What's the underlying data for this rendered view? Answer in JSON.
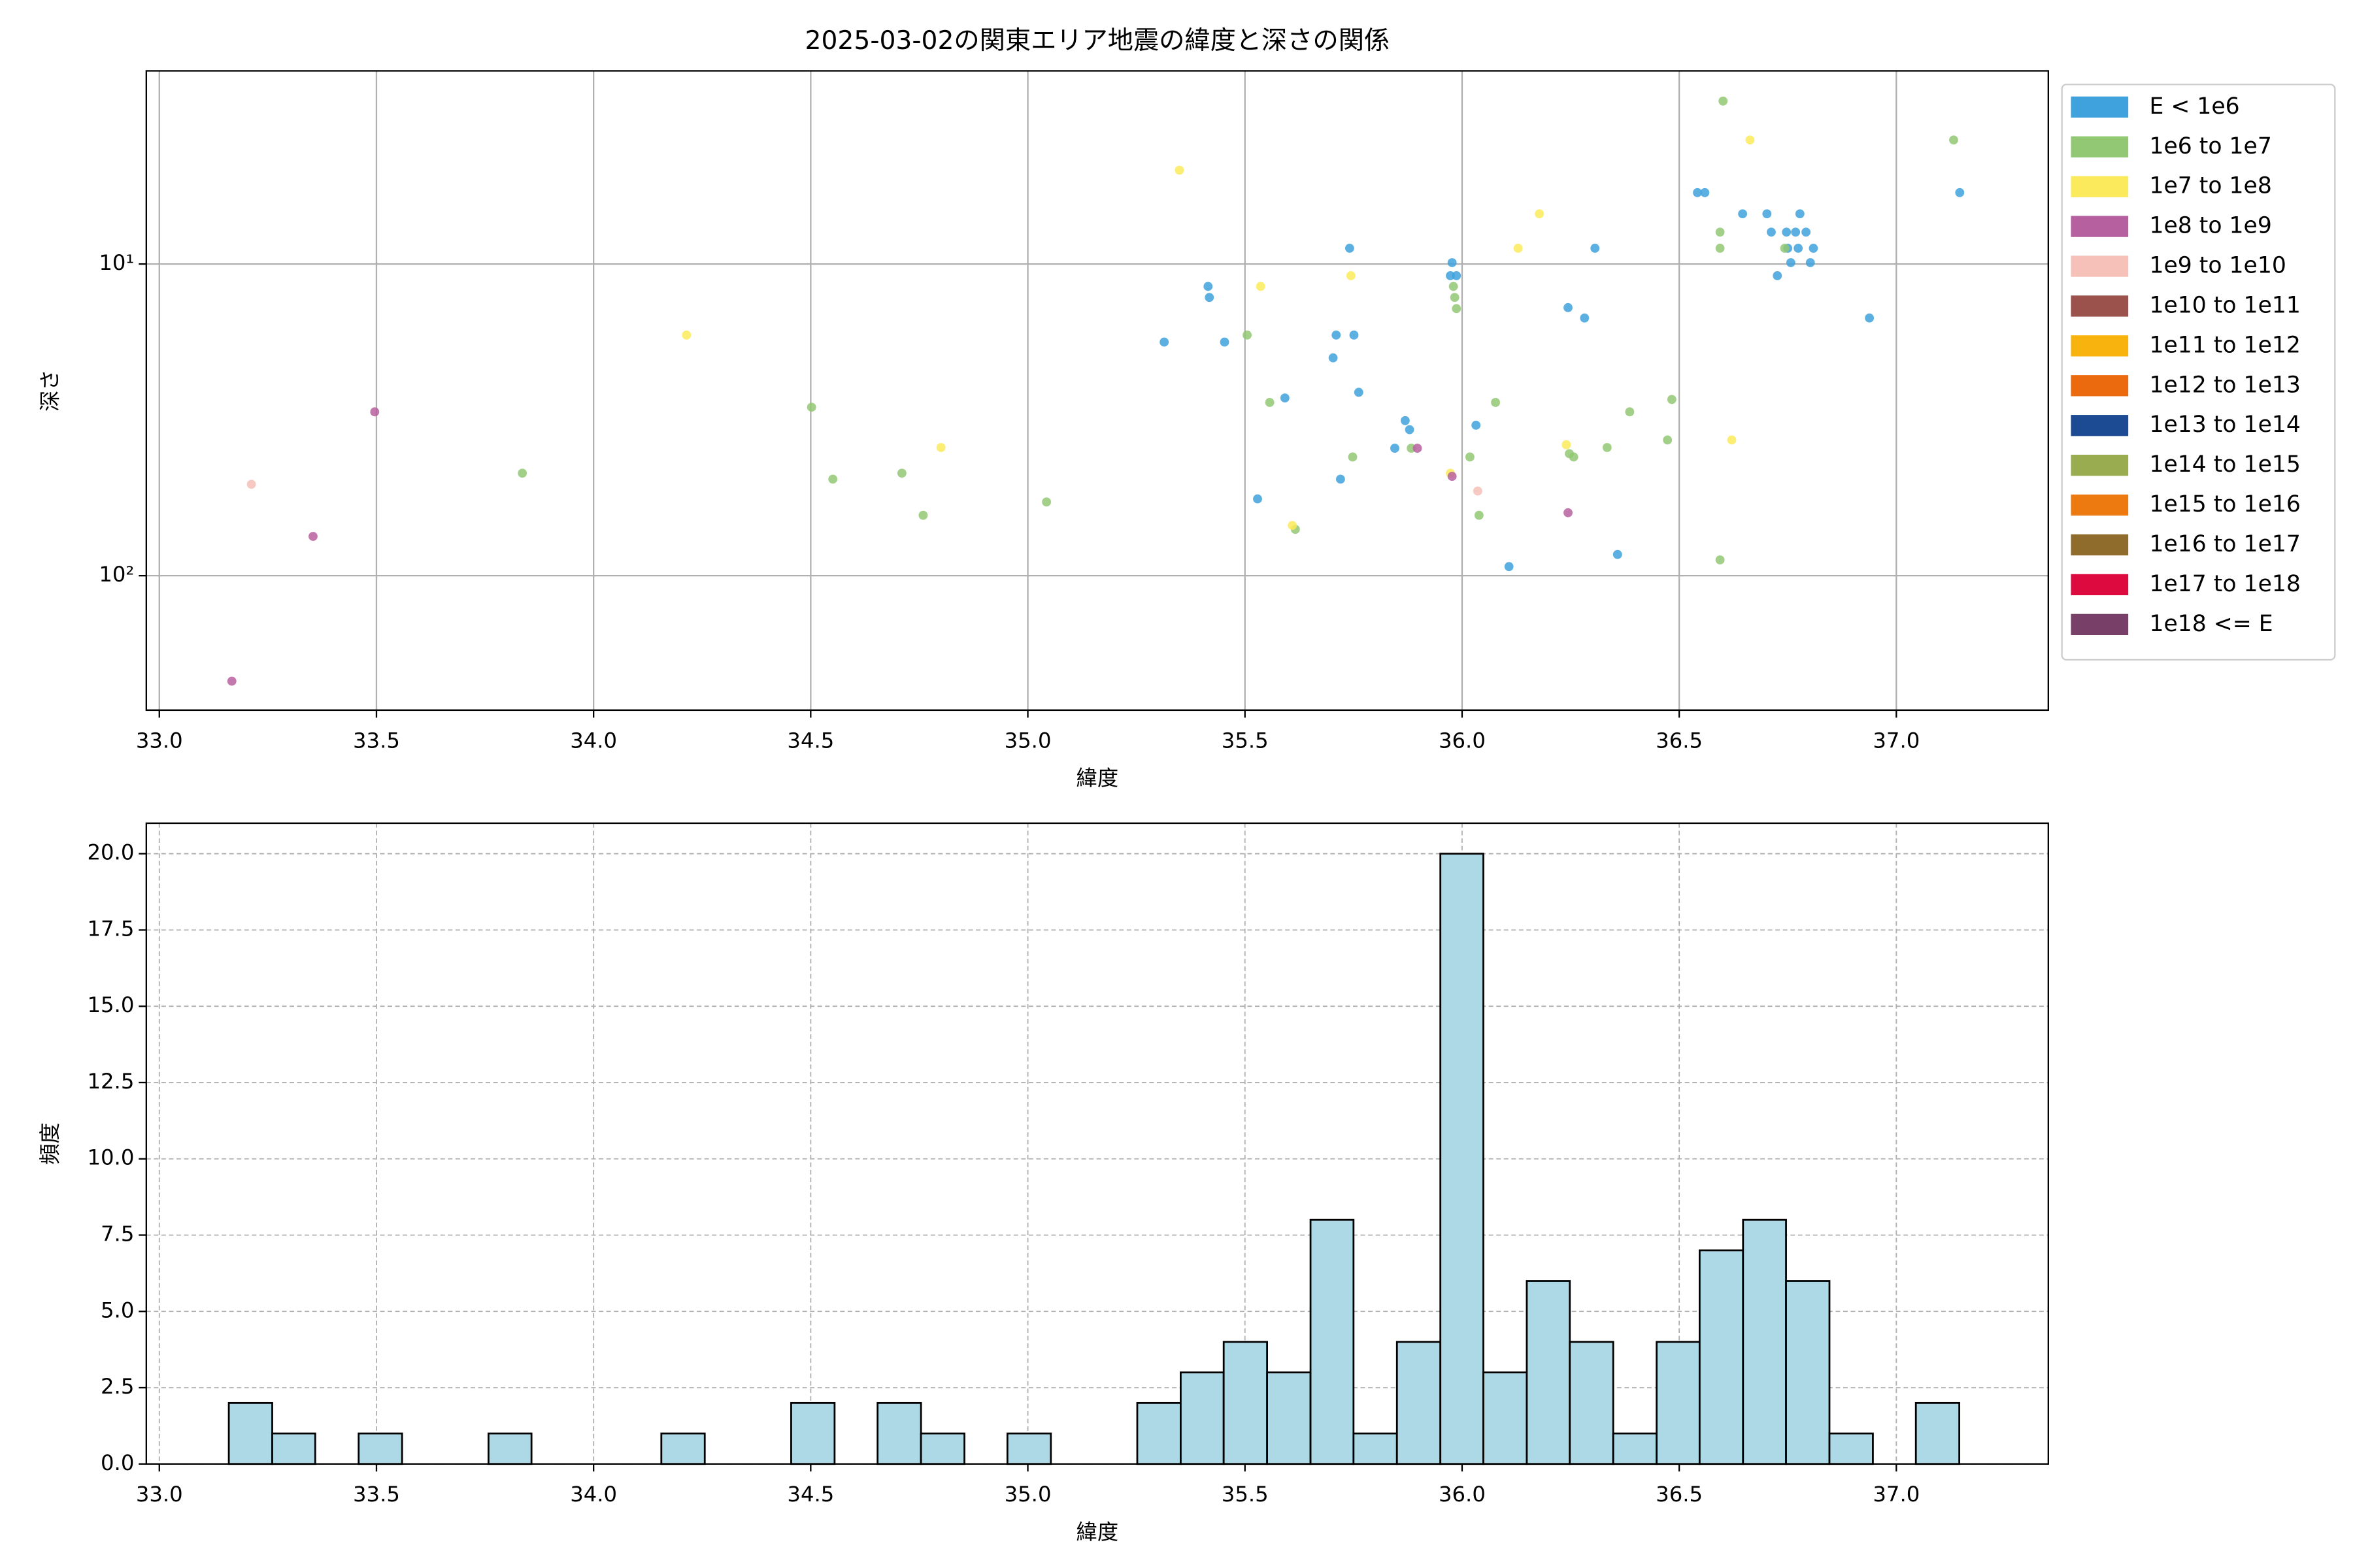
{
  "chart_data": [
    {
      "type": "scatter",
      "title": "2025-03-02の関東エリア地震の緯度と深さの関係",
      "xlabel": "緯度",
      "ylabel": "深さ",
      "xlim": [
        32.97,
        37.35
      ],
      "ylim": [
        270,
        2.4
      ],
      "yscale": "log",
      "grid": "solid",
      "legend": "outside right",
      "xticks": [
        {
          "value": 33,
          "label": "33.0"
        },
        {
          "value": 33.5,
          "label": "33.5"
        },
        {
          "value": 34,
          "label": "34.0"
        },
        {
          "value": 34.5,
          "label": "34.5"
        },
        {
          "value": 35,
          "label": "35.0"
        },
        {
          "value": 35.5,
          "label": "35.5"
        },
        {
          "value": 36,
          "label": "36.0"
        },
        {
          "value": 36.5,
          "label": "36.5"
        },
        {
          "value": 37,
          "label": "37.0"
        }
      ],
      "yticks": [
        {
          "value": 10,
          "label": "10¹"
        },
        {
          "value": 100,
          "label": "10²"
        }
      ],
      "series": [
        {
          "name": "E < 1e6",
          "color": "#40a2dc",
          "x": [
            35.314,
            35.415,
            35.418,
            35.453,
            35.592,
            35.529,
            35.741,
            35.71,
            35.751,
            35.703,
            35.762,
            35.72,
            35.977,
            35.973,
            35.987,
            35.869,
            35.879,
            35.845,
            36.032,
            36.108,
            36.244,
            36.282,
            36.306,
            36.358,
            36.542,
            36.559,
            36.646,
            36.702,
            36.778,
            36.712,
            36.747,
            36.768,
            36.792,
            36.75,
            36.774,
            36.809,
            36.757,
            36.802,
            36.726,
            36.938,
            37.146
          ],
          "values": [
            17.8,
            11.8,
            12.8,
            17.8,
            26.9,
            56.7,
            8.9,
            16.9,
            16.9,
            20,
            25.8,
            49,
            9.9,
            10.9,
            10.9,
            31.8,
            34,
            39,
            32.9,
            93.5,
            13.8,
            14.9,
            8.9,
            85.5,
            5.9,
            5.9,
            6.9,
            6.9,
            6.9,
            7.9,
            7.9,
            7.9,
            7.9,
            8.9,
            8.9,
            8.9,
            9.9,
            9.9,
            10.9,
            14.9,
            5.9
          ]
        },
        {
          "name": "1e6 to 1e7",
          "color": "#92c873",
          "x": [
            36.601,
            37.132,
            36.594,
            36.594,
            36.743,
            35.98,
            35.983,
            35.987,
            35.505,
            35.557,
            36.077,
            36.386,
            36.483,
            34.502,
            33.836,
            34.551,
            34.71,
            34.759,
            35.043,
            35.616,
            35.748,
            35.883,
            36.018,
            36.039,
            36.247,
            36.257,
            36.334,
            36.473,
            36.594
          ],
          "values": [
            3.0,
            4.0,
            7.9,
            8.9,
            8.9,
            11.8,
            12.8,
            13.9,
            16.9,
            27.8,
            27.8,
            29.8,
            27.2,
            28.8,
            46.9,
            49,
            46.9,
            64,
            58,
            71,
            41.6,
            39,
            41.6,
            64,
            40.6,
            41.6,
            38.8,
            36.7,
            89
          ]
        },
        {
          "name": "1e7 to 1e8",
          "color": "#fbea5b",
          "x": [
            35.349,
            36.663,
            36.178,
            36.129,
            35.744,
            35.536,
            34.214,
            34.8,
            36.621,
            36.24,
            35.973,
            35.609
          ],
          "values": [
            5.0,
            4.0,
            6.9,
            8.9,
            10.9,
            11.8,
            16.9,
            38.8,
            36.7,
            38,
            46.9,
            69
          ]
        },
        {
          "name": "1e8 to 1e9",
          "color": "#b7609f",
          "x": [
            33.496,
            33.354,
            33.167,
            35.897,
            35.977,
            36.244
          ],
          "values": [
            29.8,
            74.8,
            218,
            39,
            48,
            62.8
          ]
        },
        {
          "name": "1e9 to 1e10",
          "color": "#f5c1b8",
          "x": [
            33.212,
            36.036
          ],
          "values": [
            50.9,
            53.5
          ]
        },
        {
          "name": "1e10 to 1e11",
          "color": "#9b524d",
          "x": [],
          "values": []
        },
        {
          "name": "1e11 to 1e12",
          "color": "#f8b30f",
          "x": [],
          "values": []
        },
        {
          "name": "1e12 to 1e13",
          "color": "#ec6a0e",
          "x": [],
          "values": []
        },
        {
          "name": "1e13 to 1e14",
          "color": "#1c4b93",
          "x": [],
          "values": []
        },
        {
          "name": "1e14 to 1e15",
          "color": "#9aac50",
          "x": [],
          "values": []
        },
        {
          "name": "1e15 to 1e16",
          "color": "#ed7a11",
          "x": [],
          "values": []
        },
        {
          "name": "1e16 to 1e17",
          "color": "#8f6b2c",
          "x": [],
          "values": []
        },
        {
          "name": "1e17 to 1e18",
          "color": "#dc0a3f",
          "x": [],
          "values": []
        },
        {
          "name": "1e18 <= E",
          "color": "#784069",
          "x": [],
          "values": []
        }
      ]
    },
    {
      "type": "histogram",
      "xlabel": "緯度",
      "ylabel": "頻度",
      "color": "#add8e6",
      "edgecolor": "#000000",
      "grid": "dashed",
      "xlim": [
        32.97,
        37.35
      ],
      "ylim": [
        0,
        21
      ],
      "xticks": [
        {
          "value": 33,
          "label": "33.0"
        },
        {
          "value": 33.5,
          "label": "33.5"
        },
        {
          "value": 34,
          "label": "34.0"
        },
        {
          "value": 34.5,
          "label": "34.5"
        },
        {
          "value": 35,
          "label": "35.0"
        },
        {
          "value": 35.5,
          "label": "35.5"
        },
        {
          "value": 36,
          "label": "36.0"
        },
        {
          "value": 36.5,
          "label": "36.5"
        },
        {
          "value": 37,
          "label": "37.0"
        }
      ],
      "yticks": [
        {
          "value": 0,
          "label": "0.0"
        },
        {
          "value": 2.5,
          "label": "2.5"
        },
        {
          "value": 5,
          "label": "5.0"
        },
        {
          "value": 7.5,
          "label": "7.5"
        },
        {
          "value": 10,
          "label": "10.0"
        },
        {
          "value": 12.5,
          "label": "12.5"
        },
        {
          "value": 15,
          "label": "15.0"
        },
        {
          "value": 17.5,
          "label": "17.5"
        },
        {
          "value": 20,
          "label": "20.0"
        }
      ],
      "bins": [
        33.16,
        33.26,
        33.359,
        33.459,
        33.559,
        33.658,
        33.758,
        33.857,
        33.957,
        34.057,
        34.156,
        34.256,
        34.356,
        34.455,
        34.555,
        34.654,
        34.754,
        34.854,
        34.953,
        35.053,
        35.153,
        35.252,
        35.352,
        35.451,
        35.551,
        35.651,
        35.75,
        35.85,
        35.95,
        36.049,
        36.149,
        36.248,
        36.348,
        36.448,
        36.547,
        36.647,
        36.746,
        36.846,
        36.946,
        37.045,
        37.145
      ],
      "values": [
        2,
        1,
        0,
        1,
        0,
        0,
        1,
        0,
        0,
        0,
        1,
        0,
        0,
        2,
        0,
        2,
        1,
        0,
        1,
        0,
        0,
        2,
        3,
        4,
        3,
        8,
        1,
        4,
        20,
        3,
        6,
        4,
        1,
        4,
        7,
        8,
        6,
        1,
        0,
        2
      ]
    }
  ]
}
